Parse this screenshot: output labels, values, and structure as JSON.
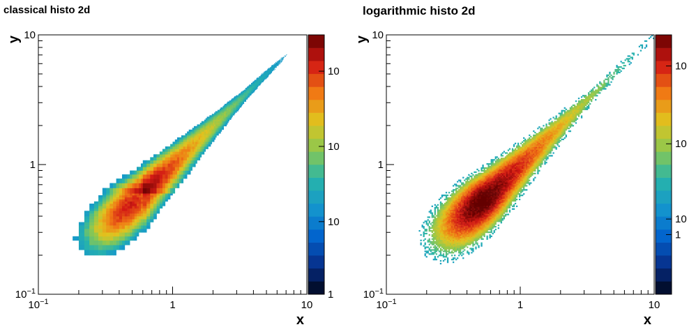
{
  "chart_data": [
    {
      "type": "heatmap",
      "title": "classical histo 2d",
      "xlabel": "x",
      "ylabel": "y",
      "xlim": [
        0.1,
        10
      ],
      "ylim": [
        0.1,
        10
      ],
      "x_scale": "log",
      "y_scale": "log",
      "binning": "linear",
      "x_ticks": [
        {
          "value": 0.1,
          "base": "10",
          "exp": "−1"
        },
        {
          "value": 1,
          "label": "1"
        },
        {
          "value": 10,
          "label": "10"
        }
      ],
      "y_ticks": [
        {
          "value": 0.1,
          "base": "10",
          "exp": "−1"
        },
        {
          "value": 1,
          "label": "1"
        },
        {
          "value": 10,
          "label": "10"
        }
      ],
      "colorbar": {
        "palette": "kBird",
        "scale": "log",
        "tick_labels": [
          {
            "frac": 0.0,
            "label": "1"
          },
          {
            "frac": 0.28,
            "label": "10"
          },
          {
            "frac": 0.57,
            "label": "10"
          },
          {
            "frac": 0.86,
            "label": "10"
          }
        ]
      },
      "distribution": {
        "peak": [
          0.5,
          0.5
        ],
        "ridge": "y ≈ x, spreading toward low x",
        "peak_count_level": 1.0
      }
    },
    {
      "type": "heatmap",
      "title": "logarithmic histo 2d",
      "xlabel": "x",
      "ylabel": "y",
      "xlim": [
        0.1,
        10
      ],
      "ylim": [
        0.1,
        10
      ],
      "x_scale": "log",
      "y_scale": "log",
      "binning": "logarithmic",
      "x_ticks": [
        {
          "value": 0.1,
          "base": "10",
          "exp": "−1"
        },
        {
          "value": 1,
          "label": "1"
        },
        {
          "value": 10,
          "label": "10"
        }
      ],
      "y_ticks": [
        {
          "value": 0.1,
          "base": "10",
          "exp": "−1"
        },
        {
          "value": 1,
          "label": "1"
        },
        {
          "value": 10,
          "label": "10"
        }
      ],
      "colorbar": {
        "palette": "kBird",
        "scale": "log",
        "tick_labels": [
          {
            "frac": 0.23,
            "label": "1"
          },
          {
            "frac": 0.29,
            "label": "10"
          },
          {
            "frac": 0.58,
            "label": "10"
          },
          {
            "frac": 0.88,
            "label": "10"
          }
        ]
      },
      "distribution": {
        "peak": [
          0.55,
          0.55
        ],
        "ridge": "y ≈ x, spreading toward low x",
        "peak_count_level": 1.0
      }
    }
  ]
}
